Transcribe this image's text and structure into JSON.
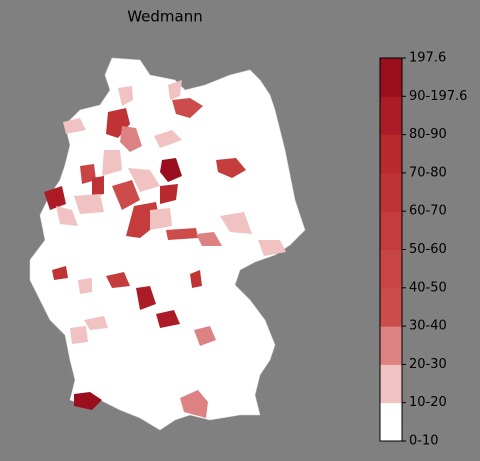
{
  "map": {
    "title": "Wedmann",
    "colorbar": {
      "labels": [
        "0-10",
        "10-20",
        "20-30",
        "30-40",
        "40-50",
        "50-60",
        "60-70",
        "70-80",
        "80-90",
        "90-197.6",
        "197.6"
      ],
      "colors": [
        "#ffffff",
        "#f0c2c2",
        "#dc8282",
        "#cc4c4c",
        "#c94444",
        "#c43c3c",
        "#bf3334",
        "#b82a2e",
        "#ac1c27",
        "#9a0e1e"
      ]
    }
  }
}
